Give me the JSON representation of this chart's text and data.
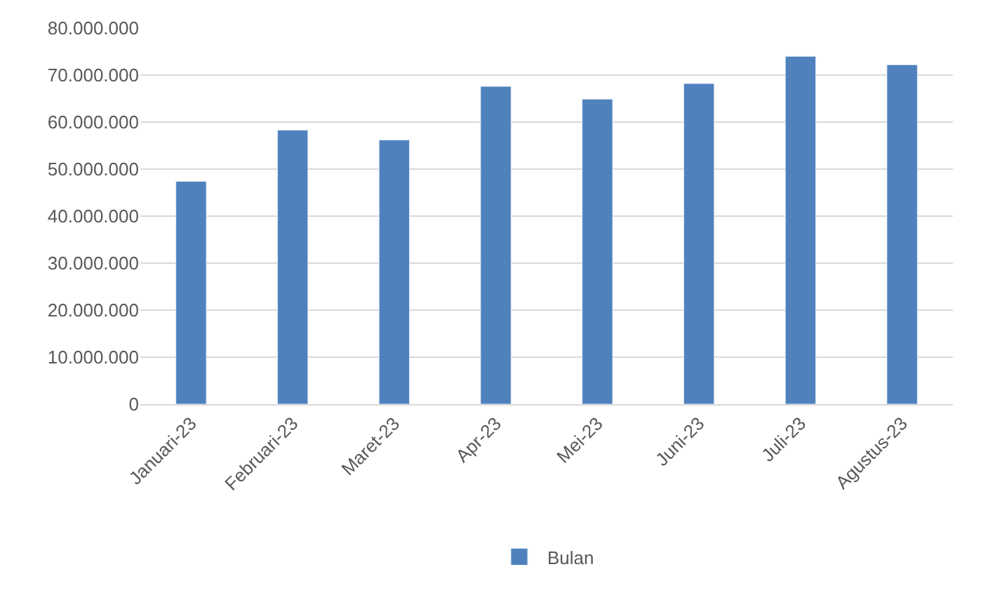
{
  "chart_data": {
    "type": "bar",
    "categories": [
      "Januari-23",
      "Februari-23",
      "Maret-23",
      "Apr-23",
      "Mei-23",
      "Juni-23",
      "Juli-23",
      "Agustus-23"
    ],
    "series": [
      {
        "name": "Bulan",
        "color": "#4f81bd",
        "values": [
          47400000,
          58300000,
          56200000,
          67600000,
          64900000,
          68200000,
          74000000,
          72200000
        ]
      }
    ],
    "ylim": [
      0,
      80000000
    ],
    "yticks": [
      {
        "value": 0,
        "label": "0"
      },
      {
        "value": 10000000,
        "label": "10.000.000"
      },
      {
        "value": 20000000,
        "label": "20.000.000"
      },
      {
        "value": 30000000,
        "label": "30.000.000"
      },
      {
        "value": 40000000,
        "label": "40.000.000"
      },
      {
        "value": 50000000,
        "label": "50.000.000"
      },
      {
        "value": 60000000,
        "label": "60.000.000"
      },
      {
        "value": 70000000,
        "label": "70.000.000"
      },
      {
        "value": 80000000,
        "label": "80.000.000"
      }
    ],
    "grid": "y",
    "legend": "bottom"
  }
}
